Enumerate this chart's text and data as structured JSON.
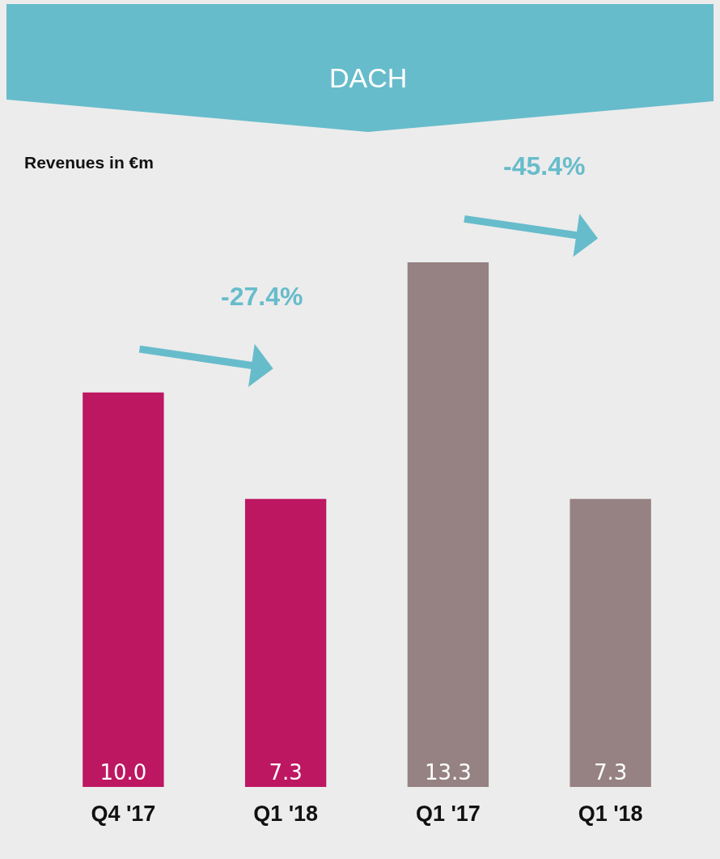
{
  "chart_data": {
    "type": "bar",
    "title": "DACH",
    "subtitle": "Revenues in €m",
    "categories": [
      "Q4 '17",
      "Q1 '18",
      "Q1 '17",
      "Q1 '18"
    ],
    "values": [
      10.0,
      7.3,
      13.3,
      7.3
    ],
    "colors": [
      "#bd1762",
      "#bd1762",
      "#968283",
      "#968283"
    ],
    "value_labels": [
      "10.0",
      "7.3",
      "13.3",
      "7.3"
    ],
    "annotations": [
      "-27.4%",
      "-45.4%"
    ]
  }
}
